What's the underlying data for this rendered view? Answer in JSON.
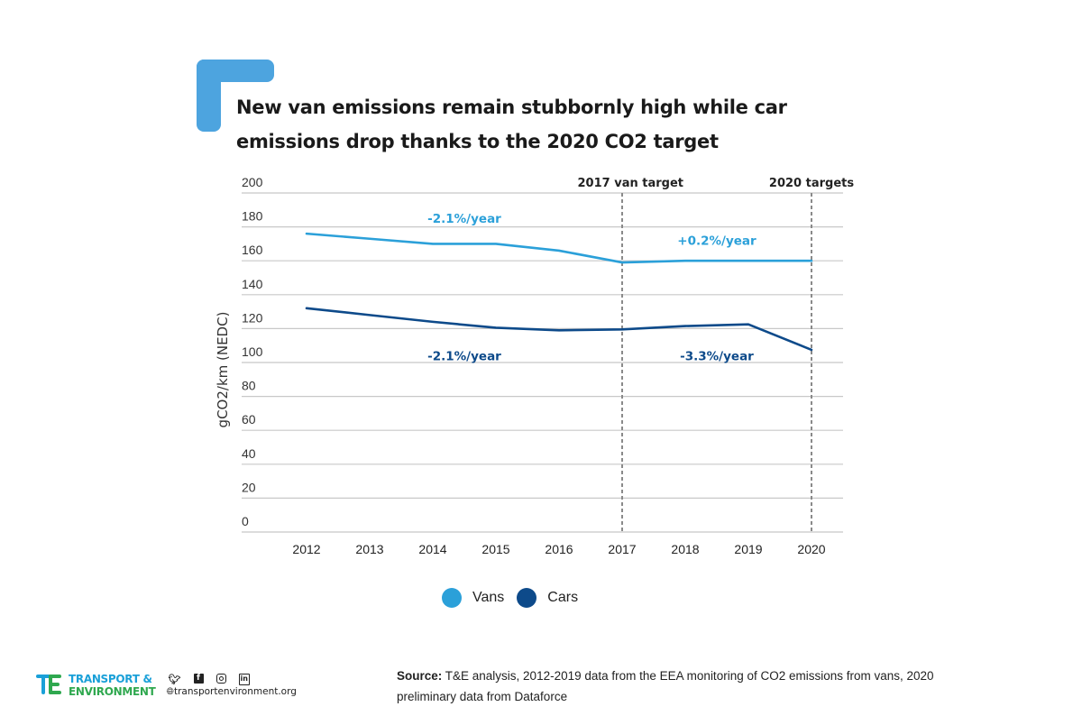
{
  "header": {
    "title_line1": "New van emissions remain stubbornly high while car",
    "title_line2": "emissions drop thanks to the 2020 CO2 target",
    "bracket_color": "#4da4df"
  },
  "chart_data": {
    "type": "line",
    "title": "New van emissions remain stubbornly high while car emissions drop thanks to the 2020 CO2 target",
    "xlabel": "",
    "ylabel": "gCO2/km (NEDC)",
    "x": [
      "2012",
      "2013",
      "2014",
      "2015",
      "2016",
      "2017",
      "2018",
      "2019",
      "2020"
    ],
    "ylim": [
      0,
      200
    ],
    "yticks": [
      0,
      20,
      40,
      60,
      80,
      100,
      120,
      140,
      160,
      180,
      200
    ],
    "grid": true,
    "series": [
      {
        "name": "Vans",
        "color": "#2ba0d9",
        "values": [
          176,
          173,
          170,
          170,
          166,
          159,
          160,
          160,
          160
        ]
      },
      {
        "name": "Cars",
        "color": "#0d4a8a",
        "values": [
          132,
          128,
          124,
          120.5,
          119,
          119.5,
          121.5,
          122.5,
          107.5
        ]
      }
    ],
    "vertical_markers": [
      {
        "x": "2017",
        "label": "2017 van target"
      },
      {
        "x": "2020",
        "label": "2020 targets"
      }
    ],
    "annotations": [
      {
        "text": "-2.1%/year",
        "series": "Vans",
        "x": 2014.5,
        "y": 185
      },
      {
        "text": "+0.2%/year",
        "series": "Vans",
        "x": 2018.5,
        "y": 172
      },
      {
        "text": "-2.1%/year",
        "series": "Cars",
        "x": 2014.5,
        "y": 104
      },
      {
        "text": "-3.3%/year",
        "series": "Cars",
        "x": 2018.5,
        "y": 104
      }
    ],
    "legend": {
      "position": "bottom-center",
      "entries": [
        "Vans",
        "Cars"
      ]
    }
  },
  "legend": {
    "items": [
      {
        "label": "Vans",
        "color": "#2ba0d9"
      },
      {
        "label": "Cars",
        "color": "#0d4a8a"
      }
    ]
  },
  "footer": {
    "brand_line1": "TRANSPORT &",
    "brand_line2": "ENVIRONMENT",
    "social_icons": [
      "twitter-icon",
      "facebook-icon",
      "instagram-icon",
      "linkedin-icon"
    ],
    "website": "transportenvironment.org",
    "source_label": "Source:",
    "source_text": " T&E analysis, 2012-2019 data from the EEA monitoring of CO2 emissions from vans, 2020 preliminary data from Dataforce"
  }
}
